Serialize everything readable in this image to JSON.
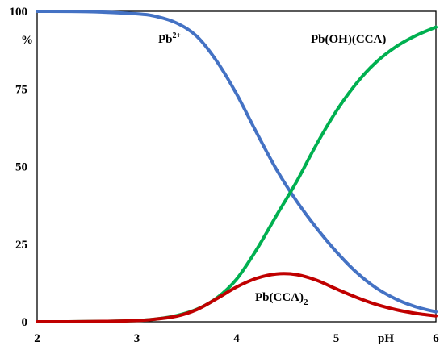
{
  "chart_data": {
    "type": "line",
    "xlabel": "pH",
    "ylabel": "%",
    "xlim": [
      2,
      6
    ],
    "ylim": [
      0,
      100
    ],
    "x_ticks": [
      "2",
      "3",
      "4",
      "5",
      "6"
    ],
    "y_ticks": [
      "0",
      "25",
      "50",
      "75",
      "100"
    ],
    "grid": false,
    "legend": "none",
    "series": [
      {
        "name": "Pb2+",
        "label_base": "Pb",
        "label_sup": "2+",
        "color": "#4472C4",
        "x": [
          2.0,
          2.5,
          3.0,
          3.2,
          3.4,
          3.6,
          3.8,
          4.0,
          4.2,
          4.4,
          4.6,
          4.8,
          5.0,
          5.2,
          5.4,
          5.6,
          5.8,
          6.0
        ],
        "y": [
          100.0,
          99.9,
          99.2,
          98.3,
          96.2,
          92.0,
          84.0,
          73.4,
          61.0,
          49.1,
          39.0,
          30.3,
          22.6,
          16.0,
          10.9,
          7.3,
          4.8,
          3.2
        ]
      },
      {
        "name": "Pb(OH)(CCA)",
        "color": "#00B050",
        "x": [
          2.0,
          2.5,
          3.0,
          3.2,
          3.4,
          3.6,
          3.8,
          4.0,
          4.2,
          4.4,
          4.6,
          4.8,
          5.0,
          5.2,
          5.4,
          5.6,
          5.8,
          6.0
        ],
        "y": [
          0.0,
          0.05,
          0.4,
          0.9,
          2.0,
          4.0,
          7.6,
          13.7,
          23.2,
          34.2,
          45.0,
          57.0,
          67.8,
          76.7,
          83.6,
          88.6,
          92.2,
          94.9
        ]
      },
      {
        "name": "Pb(CCA)2",
        "label_base": "Pb(CCA)",
        "label_sub": "2",
        "color": "#C00000",
        "x": [
          2.0,
          2.5,
          3.0,
          3.2,
          3.4,
          3.6,
          3.8,
          4.0,
          4.2,
          4.4,
          4.6,
          4.8,
          5.0,
          5.2,
          5.4,
          5.6,
          5.8,
          6.0
        ],
        "y": [
          0.0,
          0.05,
          0.4,
          0.9,
          1.8,
          3.9,
          7.4,
          11.2,
          14.0,
          15.4,
          15.2,
          13.4,
          10.6,
          7.9,
          5.6,
          3.9,
          2.7,
          1.9
        ]
      }
    ]
  }
}
